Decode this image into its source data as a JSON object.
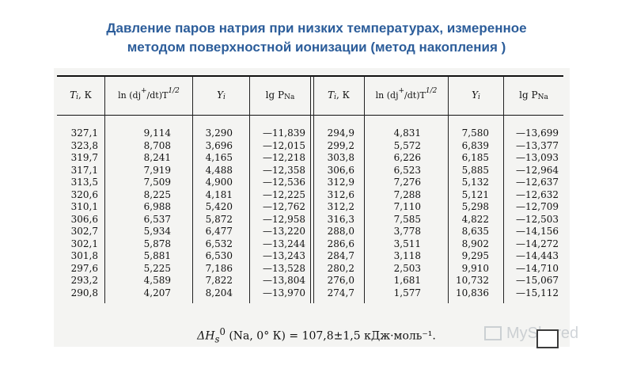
{
  "title": {
    "line1": "Давление паров натрия при низких температурах, измеренное",
    "line2": "методом поверхностной ионизации (метод накопления )"
  },
  "table": {
    "headers": {
      "t": "T",
      "t_sub": "i",
      "t_unit": ", К",
      "ln_pre": "ln (dj",
      "ln_plus": "+",
      "ln_mid": "/dt)T",
      "ln_pow": "1/2",
      "y": "Y",
      "y_sub": "i",
      "lg": "lg P",
      "lg_sub": "Na"
    },
    "left": {
      "t": [
        "327,1",
        "323,8",
        "319,7",
        "317,1",
        "313,5",
        "320,6",
        "310,1",
        "306,6",
        "302,7",
        "302,1",
        "301,8",
        "297,6",
        "293,2",
        "290,8"
      ],
      "ln": [
        "9,114",
        "8,708",
        "8,241",
        "7,919",
        "7,509",
        "8,225",
        "6,988",
        "6,537",
        "5,934",
        "5,878",
        "5,881",
        "5,225",
        "4,589",
        "4,207"
      ],
      "y": [
        "3,290",
        "3,696",
        "4,165",
        "4,488",
        "4,900",
        "4,181",
        "5,420",
        "5,872",
        "6,477",
        "6,532",
        "6,530",
        "7,186",
        "7,822",
        "8,204"
      ],
      "lg": [
        "—11,839",
        "—12,015",
        "—12,218",
        "—12,358",
        "—12,536",
        "—12,225",
        "—12,762",
        "—12,958",
        "—13,220",
        "—13,244",
        "—13,243",
        "—13,528",
        "—13,804",
        "—13,970"
      ]
    },
    "right": {
      "t": [
        "294,9",
        "299,2",
        "303,8",
        "306,6",
        "312,9",
        "312,6",
        "312,2",
        "316,3",
        "288,0",
        "286,6",
        "284,7",
        "280,2",
        "276,0",
        "274,7"
      ],
      "ln": [
        "4,831",
        "5,572",
        "6,226",
        "6,523",
        "7,276",
        "7,288",
        "7,110",
        "7,585",
        "3,778",
        "3,511",
        "3,118",
        "2,503",
        "1,681",
        "1,577"
      ],
      "y": [
        "7,580",
        "6,839",
        "6,185",
        "5,885",
        "5,132",
        "5,121",
        "5,298",
        "4,822",
        "8,635",
        "8,902",
        "9,295",
        "9,910",
        "10,732",
        "10,836"
      ],
      "lg": [
        "—13,699",
        "—13,377",
        "—13,093",
        "—12,964",
        "—12,637",
        "—12,632",
        "—12,709",
        "—12,503",
        "—14,156",
        "—14,272",
        "—14,443",
        "—14,710",
        "—15,067",
        "—15,112"
      ]
    }
  },
  "formula": "ΔH",
  "formula_sub": "s",
  "formula_sup": "0",
  "formula_rest": "(Na, 0° К) = 107,8±1,5 кДж·моль⁻¹.",
  "watermark": "MyShared"
}
